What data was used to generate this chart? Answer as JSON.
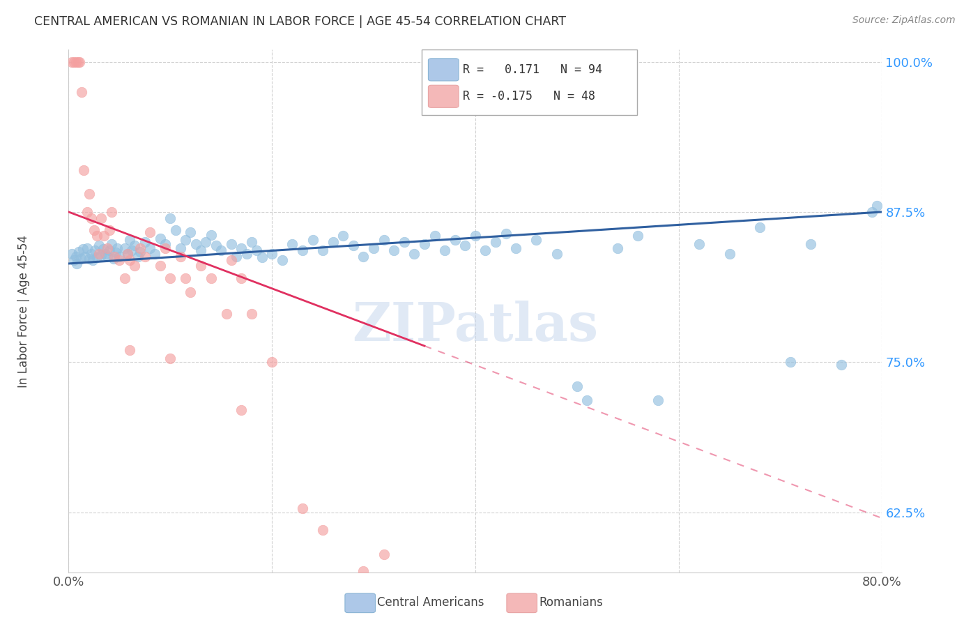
{
  "title": "CENTRAL AMERICAN VS ROMANIAN IN LABOR FORCE | AGE 45-54 CORRELATION CHART",
  "source": "Source: ZipAtlas.com",
  "ylabel": "In Labor Force | Age 45-54",
  "xlim": [
    0.0,
    0.8
  ],
  "ylim": [
    0.575,
    1.01
  ],
  "yticks": [
    0.625,
    0.75,
    0.875,
    1.0
  ],
  "ytick_labels": [
    "62.5%",
    "75.0%",
    "87.5%",
    "100.0%"
  ],
  "xticks": [
    0.0,
    0.2,
    0.4,
    0.6,
    0.8
  ],
  "xtick_labels": [
    "0.0%",
    "",
    "",
    "",
    "80.0%"
  ],
  "blue_color": "#92bfdf",
  "pink_color": "#f4a0a0",
  "blue_line_color": "#3060a0",
  "pink_line_color": "#e03060",
  "watermark": "ZIPatlas",
  "blue_points": [
    [
      0.003,
      0.84
    ],
    [
      0.005,
      0.835
    ],
    [
      0.007,
      0.838
    ],
    [
      0.008,
      0.832
    ],
    [
      0.01,
      0.842
    ],
    [
      0.012,
      0.836
    ],
    [
      0.014,
      0.844
    ],
    [
      0.016,
      0.838
    ],
    [
      0.018,
      0.845
    ],
    [
      0.02,
      0.836
    ],
    [
      0.022,
      0.84
    ],
    [
      0.024,
      0.835
    ],
    [
      0.026,
      0.843
    ],
    [
      0.028,
      0.837
    ],
    [
      0.03,
      0.847
    ],
    [
      0.032,
      0.839
    ],
    [
      0.034,
      0.844
    ],
    [
      0.036,
      0.84
    ],
    [
      0.038,
      0.838
    ],
    [
      0.04,
      0.843
    ],
    [
      0.042,
      0.848
    ],
    [
      0.044,
      0.836
    ],
    [
      0.046,
      0.841
    ],
    [
      0.048,
      0.845
    ],
    [
      0.05,
      0.838
    ],
    [
      0.055,
      0.845
    ],
    [
      0.058,
      0.84
    ],
    [
      0.06,
      0.852
    ],
    [
      0.062,
      0.843
    ],
    [
      0.065,
      0.847
    ],
    [
      0.068,
      0.838
    ],
    [
      0.07,
      0.842
    ],
    [
      0.075,
      0.85
    ],
    [
      0.08,
      0.845
    ],
    [
      0.085,
      0.84
    ],
    [
      0.09,
      0.853
    ],
    [
      0.095,
      0.848
    ],
    [
      0.1,
      0.87
    ],
    [
      0.105,
      0.86
    ],
    [
      0.11,
      0.845
    ],
    [
      0.115,
      0.852
    ],
    [
      0.12,
      0.858
    ],
    [
      0.125,
      0.848
    ],
    [
      0.13,
      0.843
    ],
    [
      0.135,
      0.85
    ],
    [
      0.14,
      0.856
    ],
    [
      0.145,
      0.847
    ],
    [
      0.15,
      0.843
    ],
    [
      0.16,
      0.848
    ],
    [
      0.165,
      0.838
    ],
    [
      0.17,
      0.845
    ],
    [
      0.175,
      0.84
    ],
    [
      0.18,
      0.85
    ],
    [
      0.185,
      0.843
    ],
    [
      0.19,
      0.837
    ],
    [
      0.2,
      0.84
    ],
    [
      0.21,
      0.835
    ],
    [
      0.22,
      0.848
    ],
    [
      0.23,
      0.843
    ],
    [
      0.24,
      0.852
    ],
    [
      0.25,
      0.843
    ],
    [
      0.26,
      0.85
    ],
    [
      0.27,
      0.855
    ],
    [
      0.28,
      0.847
    ],
    [
      0.29,
      0.838
    ],
    [
      0.3,
      0.845
    ],
    [
      0.31,
      0.852
    ],
    [
      0.32,
      0.843
    ],
    [
      0.33,
      0.85
    ],
    [
      0.34,
      0.84
    ],
    [
      0.35,
      0.848
    ],
    [
      0.36,
      0.855
    ],
    [
      0.37,
      0.843
    ],
    [
      0.38,
      0.852
    ],
    [
      0.39,
      0.847
    ],
    [
      0.4,
      0.855
    ],
    [
      0.41,
      0.843
    ],
    [
      0.42,
      0.85
    ],
    [
      0.43,
      0.857
    ],
    [
      0.44,
      0.845
    ],
    [
      0.46,
      0.852
    ],
    [
      0.48,
      0.84
    ],
    [
      0.5,
      0.73
    ],
    [
      0.51,
      0.718
    ],
    [
      0.54,
      0.845
    ],
    [
      0.56,
      0.855
    ],
    [
      0.58,
      0.718
    ],
    [
      0.62,
      0.848
    ],
    [
      0.65,
      0.84
    ],
    [
      0.68,
      0.862
    ],
    [
      0.71,
      0.75
    ],
    [
      0.73,
      0.848
    ],
    [
      0.76,
      0.748
    ],
    [
      0.79,
      0.875
    ],
    [
      0.795,
      0.88
    ]
  ],
  "pink_points": [
    [
      0.003,
      1.0
    ],
    [
      0.005,
      1.0
    ],
    [
      0.007,
      1.0
    ],
    [
      0.009,
      1.0
    ],
    [
      0.011,
      1.0
    ],
    [
      0.013,
      0.975
    ],
    [
      0.015,
      0.91
    ],
    [
      0.018,
      0.875
    ],
    [
      0.02,
      0.89
    ],
    [
      0.022,
      0.87
    ],
    [
      0.025,
      0.86
    ],
    [
      0.028,
      0.855
    ],
    [
      0.03,
      0.84
    ],
    [
      0.032,
      0.87
    ],
    [
      0.035,
      0.855
    ],
    [
      0.038,
      0.845
    ],
    [
      0.04,
      0.86
    ],
    [
      0.042,
      0.875
    ],
    [
      0.045,
      0.838
    ],
    [
      0.05,
      0.835
    ],
    [
      0.055,
      0.82
    ],
    [
      0.058,
      0.84
    ],
    [
      0.06,
      0.835
    ],
    [
      0.065,
      0.83
    ],
    [
      0.07,
      0.845
    ],
    [
      0.075,
      0.838
    ],
    [
      0.08,
      0.858
    ],
    [
      0.09,
      0.83
    ],
    [
      0.095,
      0.845
    ],
    [
      0.1,
      0.82
    ],
    [
      0.11,
      0.838
    ],
    [
      0.115,
      0.82
    ],
    [
      0.12,
      0.808
    ],
    [
      0.13,
      0.83
    ],
    [
      0.14,
      0.82
    ],
    [
      0.155,
      0.79
    ],
    [
      0.16,
      0.835
    ],
    [
      0.17,
      0.82
    ],
    [
      0.06,
      0.76
    ],
    [
      0.1,
      0.753
    ],
    [
      0.17,
      0.71
    ],
    [
      0.18,
      0.79
    ],
    [
      0.2,
      0.75
    ],
    [
      0.23,
      0.628
    ],
    [
      0.25,
      0.61
    ],
    [
      0.29,
      0.576
    ],
    [
      0.31,
      0.59
    ]
  ]
}
